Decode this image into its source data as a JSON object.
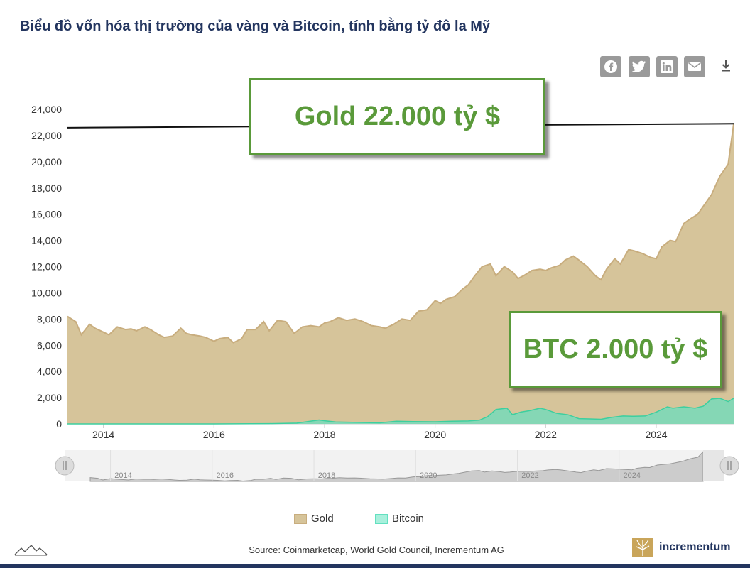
{
  "title": "Biểu đồ vốn hóa thị trường của vàng và Bitcoin, tính bằng tỷ đô la Mỹ",
  "share_icons": [
    "facebook-icon",
    "twitter-icon",
    "linkedin-icon",
    "email-icon"
  ],
  "download_icon": "download-icon",
  "callouts": {
    "gold": "Gold 22.000 tỷ $",
    "btc": "BTC 2.000 tỷ $"
  },
  "source": "Source: Coinmarketcap, World Gold Council, Incrementum AG",
  "brand": "incrementum",
  "legend": [
    {
      "label": "Gold",
      "color": "#d6c49a"
    },
    {
      "label": "Bitcoin",
      "color": "#63e0c0"
    }
  ],
  "navigator": {
    "labels": [
      "2014",
      "2016",
      "2018",
      "2020",
      "2022",
      "2024"
    ]
  },
  "chart_data": {
    "type": "area",
    "title": "",
    "xlabel": "",
    "ylabel": "",
    "xlim": [
      2013.35,
      2025.4
    ],
    "ylim": [
      0,
      24000
    ],
    "yticks": [
      "0",
      "2,000",
      "4,000",
      "6,000",
      "8,000",
      "10,000",
      "12,000",
      "14,000",
      "16,000",
      "18,000",
      "20,000",
      "22,000",
      "24,000"
    ],
    "xticks": [
      "2014",
      "2016",
      "2018",
      "2020",
      "2022",
      "2024"
    ],
    "grid": false,
    "legend_position": "bottom",
    "reference_line": {
      "label": "",
      "x": [
        2013.35,
        2025.4
      ],
      "y": [
        22600,
        22900
      ]
    },
    "series": [
      {
        "name": "Gold",
        "color": "#d6c49a",
        "line_color": "#c8ad7e",
        "x": [
          2013.35,
          2013.5,
          2013.6,
          2013.75,
          2013.85,
          2014.0,
          2014.1,
          2014.25,
          2014.4,
          2014.5,
          2014.6,
          2014.75,
          2014.85,
          2015.0,
          2015.1,
          2015.25,
          2015.4,
          2015.5,
          2015.6,
          2015.75,
          2015.85,
          2016.0,
          2016.1,
          2016.25,
          2016.35,
          2016.5,
          2016.6,
          2016.75,
          2016.9,
          2017.0,
          2017.15,
          2017.3,
          2017.45,
          2017.6,
          2017.75,
          2017.9,
          2018.0,
          2018.1,
          2018.25,
          2018.4,
          2018.55,
          2018.7,
          2018.85,
          2019.0,
          2019.1,
          2019.25,
          2019.4,
          2019.55,
          2019.7,
          2019.85,
          2020.0,
          2020.1,
          2020.2,
          2020.35,
          2020.5,
          2020.6,
          2020.7,
          2020.85,
          2021.0,
          2021.1,
          2021.25,
          2021.4,
          2021.5,
          2021.6,
          2021.75,
          2021.9,
          2022.0,
          2022.1,
          2022.25,
          2022.35,
          2022.5,
          2022.6,
          2022.75,
          2022.9,
          2023.0,
          2023.1,
          2023.25,
          2023.35,
          2023.5,
          2023.6,
          2023.75,
          2023.9,
          2024.0,
          2024.1,
          2024.25,
          2024.35,
          2024.5,
          2024.6,
          2024.75,
          2024.9,
          2025.0,
          2025.15,
          2025.3,
          2025.4
        ],
        "values": [
          8200,
          7800,
          6800,
          7600,
          7300,
          7000,
          6800,
          7400,
          7200,
          7250,
          7100,
          7400,
          7200,
          6800,
          6600,
          6700,
          7300,
          6900,
          6800,
          6700,
          6600,
          6300,
          6500,
          6600,
          6200,
          6500,
          7200,
          7200,
          7800,
          7100,
          7900,
          7800,
          6900,
          7400,
          7500,
          7400,
          7700,
          7800,
          8100,
          7900,
          8000,
          7800,
          7500,
          7400,
          7300,
          7600,
          8000,
          7900,
          8600,
          8700,
          9400,
          9200,
          9500,
          9700,
          10300,
          10600,
          11200,
          12000,
          12200,
          11300,
          12000,
          11600,
          11100,
          11300,
          11700,
          11800,
          11700,
          11900,
          12100,
          12500,
          12800,
          12500,
          12000,
          11300,
          11000,
          11800,
          12600,
          12200,
          13300,
          13200,
          13000,
          12700,
          12600,
          13500,
          14000,
          13900,
          15300,
          15600,
          16000,
          16900,
          17500,
          18900,
          19800,
          22900
        ]
      },
      {
        "name": "Bitcoin",
        "color": "#63e0c0",
        "line_color": "#3ccf9f",
        "x": [
          2013.35,
          2016.0,
          2017.0,
          2017.5,
          2017.9,
          2018.0,
          2018.2,
          2018.5,
          2019.0,
          2019.3,
          2019.6,
          2020.0,
          2020.3,
          2020.6,
          2020.8,
          2020.95,
          2021.1,
          2021.3,
          2021.4,
          2021.55,
          2021.7,
          2021.9,
          2022.0,
          2022.2,
          2022.4,
          2022.6,
          2022.8,
          2023.0,
          2023.2,
          2023.4,
          2023.6,
          2023.8,
          2024.0,
          2024.2,
          2024.3,
          2024.5,
          2024.7,
          2024.85,
          2025.0,
          2025.15,
          2025.3,
          2025.4
        ],
        "values": [
          0,
          0,
          20,
          60,
          300,
          240,
          150,
          120,
          80,
          200,
          180,
          160,
          200,
          220,
          280,
          550,
          1100,
          1200,
          700,
          900,
          1000,
          1200,
          1100,
          800,
          700,
          400,
          380,
          350,
          500,
          600,
          580,
          600,
          900,
          1300,
          1200,
          1300,
          1200,
          1350,
          1900,
          1950,
          1700,
          1950
        ]
      }
    ]
  }
}
